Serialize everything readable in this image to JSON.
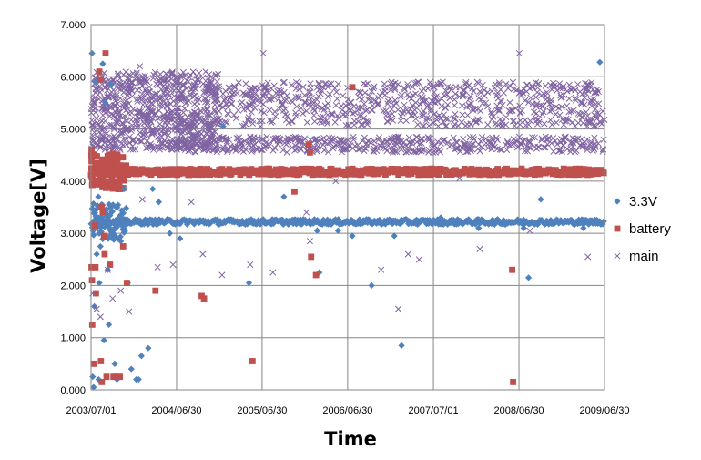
{
  "chart_data": {
    "type": "scatter",
    "title": "",
    "xlabel": "Time",
    "ylabel": "Voltage[V]",
    "x_axis": {
      "min": "2003-07-01",
      "max": "2009-06-30",
      "ticks": [
        "2003-07-01",
        "2004-06-30",
        "2005-06-30",
        "2006-06-30",
        "2007-07-01",
        "2008-06-30",
        "2009-06-30"
      ],
      "tick_labels": [
        "2003/07/01",
        "2004/06/30",
        "2005/06/30",
        "2006/06/30",
        "2007/07/01",
        "2008/06/30",
        "2009/06/30"
      ]
    },
    "y_axis": {
      "min": 0,
      "max": 7,
      "ticks": [
        0,
        1,
        2,
        3,
        4,
        5,
        6,
        7
      ],
      "tick_labels": [
        "0.000",
        "1.000",
        "2.000",
        "3.000",
        "4.000",
        "5.000",
        "6.000",
        "7.000"
      ]
    },
    "grid": true,
    "legend_position": "right",
    "series": [
      {
        "name": "3.3V",
        "marker": "diamond",
        "color": "#4F81BD",
        "points": [
          [
            "2003-07-05",
            6.45
          ],
          [
            "2003-08-20",
            6.25
          ],
          [
            "2003-09-25",
            5.85
          ],
          [
            "2003-07-20",
            5.9
          ],
          [
            "2003-09-01",
            5.5
          ],
          [
            "2003-08-01",
            3.7
          ],
          [
            "2003-08-15",
            3.55
          ],
          [
            "2003-09-05",
            3.45
          ],
          [
            "2003-07-10",
            3.05
          ],
          [
            "2003-09-20",
            2.95
          ],
          [
            "2003-08-10",
            2.75
          ],
          [
            "2003-07-25",
            2.6
          ],
          [
            "2003-09-10",
            2.3
          ],
          [
            "2003-08-05",
            2.05
          ],
          [
            "2003-07-15",
            1.6
          ],
          [
            "2003-09-15",
            1.25
          ],
          [
            "2003-08-25",
            0.95
          ],
          [
            "2003-07-08",
            0.25
          ],
          [
            "2003-07-12",
            0.05
          ],
          [
            "2003-08-02",
            0.2
          ],
          [
            "2003-10-10",
            0.5
          ],
          [
            "2003-10-20",
            0.2
          ],
          [
            "2003-11-05",
            2.85
          ],
          [
            "2003-11-20",
            3.85
          ],
          [
            "2003-12-05",
            2.05
          ],
          [
            "2003-12-20",
            0.4
          ],
          [
            "2004-01-10",
            0.2
          ],
          [
            "2004-01-20",
            0.2
          ],
          [
            "2004-02-01",
            0.65
          ],
          [
            "2004-03-01",
            0.8
          ],
          [
            "2004-03-20",
            3.85
          ],
          [
            "2004-04-15",
            3.6
          ],
          [
            "2004-06-01",
            3.0
          ],
          [
            "2004-07-15",
            2.9
          ],
          [
            "2005-01-15",
            5.05
          ],
          [
            "2005-05-05",
            2.05
          ],
          [
            "2005-10-01",
            3.7
          ],
          [
            "2006-02-20",
            3.05
          ],
          [
            "2006-03-01",
            2.25
          ],
          [
            "2006-05-20",
            3.05
          ],
          [
            "2006-07-20",
            2.95
          ],
          [
            "2006-10-10",
            2.0
          ],
          [
            "2007-01-15",
            2.95
          ],
          [
            "2007-02-15",
            0.85
          ],
          [
            "2007-08-01",
            3.3
          ],
          [
            "2008-01-10",
            3.1
          ],
          [
            "2008-07-20",
            3.1
          ],
          [
            "2008-08-10",
            2.15
          ],
          [
            "2008-10-01",
            3.65
          ],
          [
            "2009-04-01",
            3.1
          ],
          [
            "2009-06-10",
            6.28
          ]
        ]
      },
      {
        "name": "battery",
        "marker": "square",
        "color": "#C0504D",
        "points": [
          [
            "2003-07-03",
            4.6
          ],
          [
            "2003-07-03",
            2.35
          ],
          [
            "2003-07-05",
            2.1
          ],
          [
            "2003-07-06",
            1.25
          ],
          [
            "2003-07-18",
            3.15
          ],
          [
            "2003-07-20",
            2.35
          ],
          [
            "2003-07-22",
            1.85
          ],
          [
            "2003-07-12",
            0.5
          ],
          [
            "2003-08-05",
            6.1
          ],
          [
            "2003-08-10",
            5.95
          ],
          [
            "2003-09-01",
            6.45
          ],
          [
            "2003-08-15",
            3.5
          ],
          [
            "2003-08-20",
            3.4
          ],
          [
            "2003-08-25",
            2.95
          ],
          [
            "2003-08-28",
            2.6
          ],
          [
            "2003-08-12",
            0.55
          ],
          [
            "2003-08-16",
            0.15
          ],
          [
            "2003-09-05",
            0.25
          ],
          [
            "2003-09-20",
            2.4
          ],
          [
            "2003-10-05",
            0.25
          ],
          [
            "2003-10-15",
            0.25
          ],
          [
            "2003-11-01",
            0.25
          ],
          [
            "2003-11-15",
            2.75
          ],
          [
            "2003-12-01",
            2.05
          ],
          [
            "2004-04-01",
            1.9
          ],
          [
            "2004-10-15",
            1.8
          ],
          [
            "2004-10-25",
            1.75
          ],
          [
            "2005-05-20",
            0.55
          ],
          [
            "2005-11-15",
            3.8
          ],
          [
            "2006-01-15",
            4.7
          ],
          [
            "2006-01-20",
            4.55
          ],
          [
            "2006-01-25",
            2.55
          ],
          [
            "2006-02-15",
            2.2
          ],
          [
            "2006-07-20",
            5.8
          ],
          [
            "2008-06-01",
            2.3
          ],
          [
            "2008-06-05",
            0.15
          ]
        ]
      },
      {
        "name": "main",
        "marker": "x",
        "color": "#8064A2",
        "points": [
          [
            "2003-07-08",
            1.85
          ],
          [
            "2003-07-25",
            1.55
          ],
          [
            "2003-08-10",
            1.4
          ],
          [
            "2003-09-10",
            2.3
          ],
          [
            "2003-10-01",
            1.75
          ],
          [
            "2003-11-05",
            1.9
          ],
          [
            "2003-12-10",
            1.5
          ],
          [
            "2004-01-25",
            6.2
          ],
          [
            "2004-02-05",
            3.65
          ],
          [
            "2004-04-10",
            2.35
          ],
          [
            "2004-06-15",
            2.4
          ],
          [
            "2004-09-01",
            3.6
          ],
          [
            "2004-10-20",
            2.6
          ],
          [
            "2005-01-10",
            2.2
          ],
          [
            "2005-05-10",
            2.4
          ],
          [
            "2005-07-05",
            6.45
          ],
          [
            "2005-08-15",
            2.25
          ],
          [
            "2006-01-05",
            3.4
          ],
          [
            "2006-01-20",
            2.85
          ],
          [
            "2006-05-10",
            4.0
          ],
          [
            "2006-11-20",
            2.3
          ],
          [
            "2007-02-01",
            1.55
          ],
          [
            "2007-03-15",
            2.6
          ],
          [
            "2007-05-01",
            2.5
          ],
          [
            "2007-08-10",
            5.9
          ],
          [
            "2007-10-20",
            4.05
          ],
          [
            "2008-01-15",
            2.7
          ],
          [
            "2008-07-01",
            6.45
          ],
          [
            "2008-08-15",
            3.05
          ],
          [
            "2009-04-20",
            2.55
          ]
        ],
        "dense_bands": [
          {
            "from": "2003-07-01",
            "to": "2004-12-31",
            "y_min": 4.6,
            "y_max": 6.1
          },
          {
            "from": "2005-01-01",
            "to": "2009-06-30",
            "y_min": 5.05,
            "y_max": 5.9
          },
          {
            "from": "2004-06-01",
            "to": "2009-06-30",
            "y_min": 4.55,
            "y_max": 4.85
          }
        ]
      }
    ],
    "dense_levels": [
      {
        "series": "3.3V",
        "from": "2003-07-01",
        "to": "2009-06-30",
        "center": 3.22,
        "spread": 0.05
      },
      {
        "series": "battery",
        "from": "2003-07-01",
        "to": "2009-06-30",
        "center": 4.18,
        "spread": 0.06
      }
    ]
  }
}
